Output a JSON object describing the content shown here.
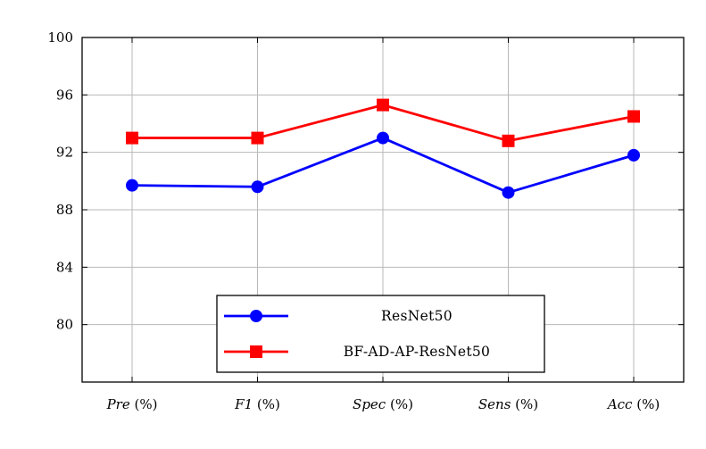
{
  "chart_data": {
    "type": "line",
    "title": "",
    "xlabel": "",
    "ylabel": "",
    "categories": [
      {
        "main": "Pre",
        "unit": "(%)"
      },
      {
        "main": "F1",
        "unit": "(%)"
      },
      {
        "main": "Spec",
        "unit": "(%)"
      },
      {
        "main": "Sens",
        "unit": "(%)"
      },
      {
        "main": "Acc",
        "unit": "(%)"
      }
    ],
    "ylim": [
      76,
      100
    ],
    "yticks": [
      80,
      84,
      88,
      92,
      96,
      100
    ],
    "grid": true,
    "legend_position": "bottom-center",
    "series": [
      {
        "name": "ResNet50",
        "color": "#0000ff",
        "marker": "circle",
        "values": [
          89.7,
          89.6,
          93.0,
          89.2,
          91.8
        ]
      },
      {
        "name": "BF-AD-AP-ResNet50",
        "color": "#ff0000",
        "marker": "square",
        "values": [
          93.0,
          93.0,
          95.3,
          92.8,
          94.5
        ]
      }
    ]
  }
}
